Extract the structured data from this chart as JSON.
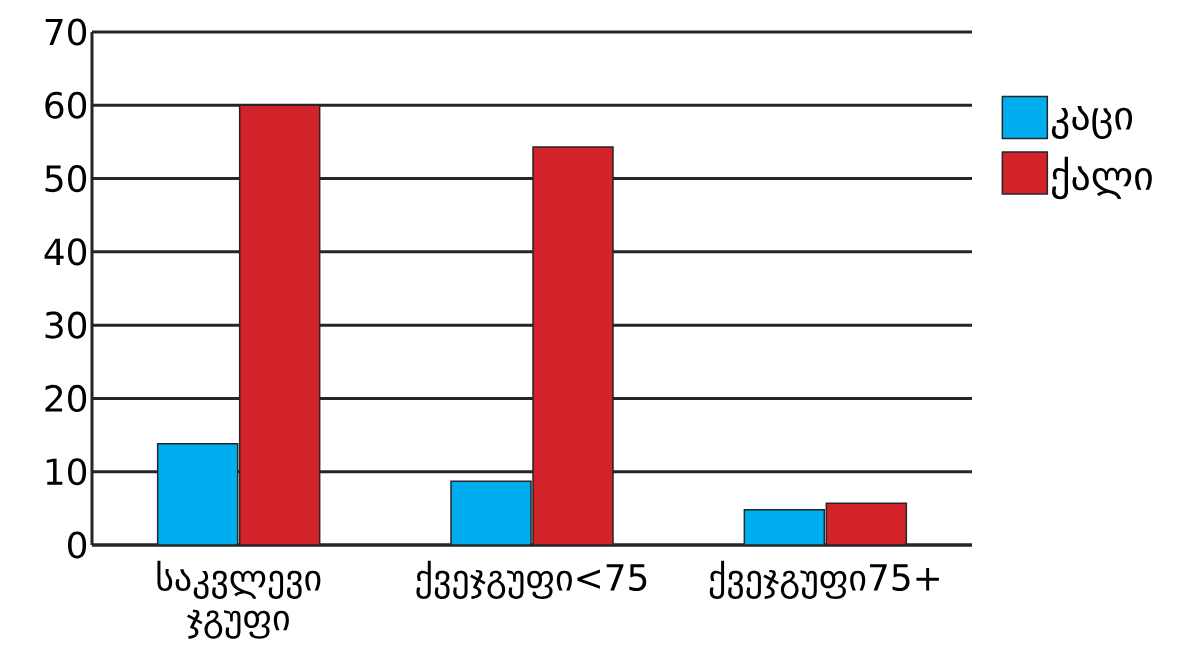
{
  "chart_data": {
    "type": "bar",
    "categories": [
      "საკვლევი ჯგუფი",
      "ქვეჯგუფი<75",
      "ქვეჯგუფი75+"
    ],
    "series": [
      {
        "name": "კაცი",
        "color": "#00adee",
        "values": [
          13.8,
          8.7,
          4.8
        ]
      },
      {
        "name": "ქალი",
        "color": "#d2232a",
        "values": [
          60,
          54.3,
          5.7
        ]
      }
    ],
    "ylim": [
      0,
      70
    ],
    "yticks": [
      0,
      10,
      20,
      30,
      40,
      50,
      60,
      70
    ],
    "grid": "y",
    "legend": "right"
  }
}
